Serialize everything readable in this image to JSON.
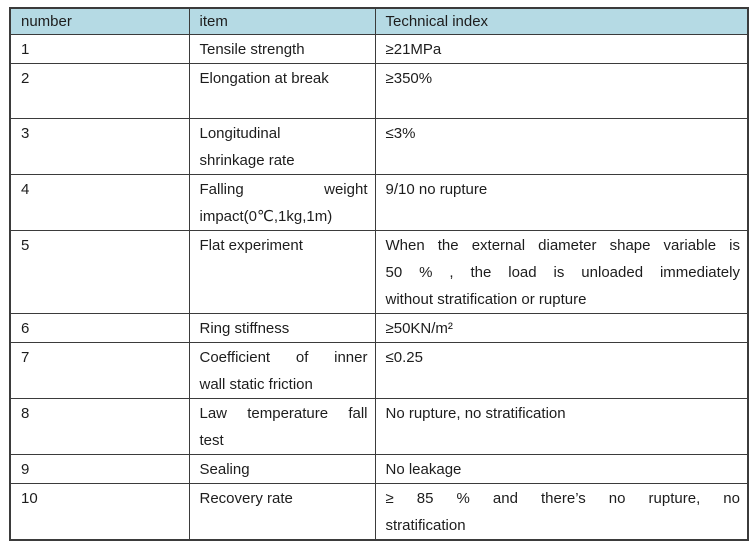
{
  "colors": {
    "header_bg": "#b5dae4",
    "border": "#3b3b3b",
    "text": "#1d1d1d"
  },
  "table": {
    "columns": {
      "number": "number",
      "item": "item",
      "tech": "Technical index"
    },
    "rows": [
      {
        "number": "1",
        "item": "Tensile strength",
        "tech": "≥21MPa"
      },
      {
        "number": "2",
        "item": "Elongation at break",
        "tech": "≥350%"
      },
      {
        "number": "3",
        "item": "Longitudinal\nshrinkage rate",
        "tech": "≤3%"
      },
      {
        "number": "4",
        "item": "Falling weight\nimpact(0℃,1kg,1m)",
        "tech": "9/10 no rupture"
      },
      {
        "number": "5",
        "item": "Flat experiment",
        "tech": "When the external diameter shape variable is\n50 % , the load is unloaded immediately\nwithout stratification or rupture"
      },
      {
        "number": "6",
        "item": "Ring stiffness",
        "tech": "≥50KN/m²"
      },
      {
        "number": "7",
        "item": "Coefficient of inner\nwall static friction",
        "tech": "≤0.25"
      },
      {
        "number": "8",
        "item": "Law temperature fall\ntest",
        "tech": "No rupture, no stratification"
      },
      {
        "number": "9",
        "item": "Sealing",
        "tech": "No leakage"
      },
      {
        "number": "10",
        "item": "Recovery rate",
        "tech": "≥ 85 % and there’s no rupture, no\nstratification"
      }
    ]
  }
}
